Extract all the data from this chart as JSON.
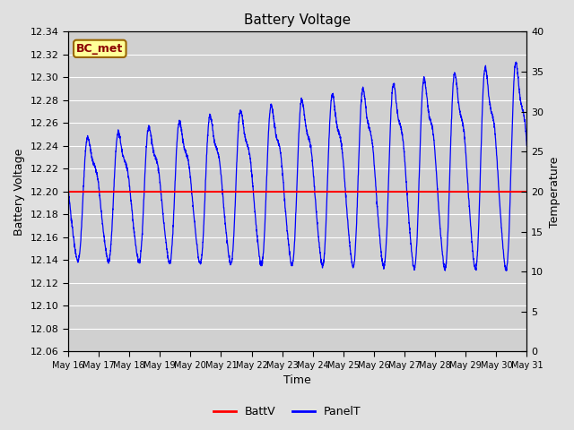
{
  "title": "Battery Voltage",
  "xlabel": "Time",
  "ylabel_left": "Battery Voltage",
  "ylabel_right": "Temperature",
  "ylim_left": [
    12.06,
    12.34
  ],
  "ylim_right": [
    0,
    40
  ],
  "yticks_left": [
    12.06,
    12.08,
    12.1,
    12.12,
    12.14,
    12.16,
    12.18,
    12.2,
    12.22,
    12.24,
    12.26,
    12.28,
    12.3,
    12.32,
    12.34
  ],
  "yticks_right": [
    0,
    5,
    10,
    15,
    20,
    25,
    30,
    35,
    40
  ],
  "batt_v": 12.2,
  "fig_bg_color": "#e0e0e0",
  "plot_bg_color": "#d0d0d0",
  "legend_labels": [
    "BattV",
    "PanelT"
  ],
  "legend_colors": [
    "red",
    "blue"
  ],
  "label_box_text": "BC_met",
  "label_box_bg": "#ffff99",
  "label_box_border": "#996600",
  "x_tick_labels": [
    "May 16",
    "May 17",
    "May 18",
    "May 19",
    "May 20",
    "May 21",
    "May 22",
    "May 23",
    "May 24",
    "May 25",
    "May 26",
    "May 27",
    "May 28",
    "May 29",
    "May 30",
    "May 31"
  ]
}
